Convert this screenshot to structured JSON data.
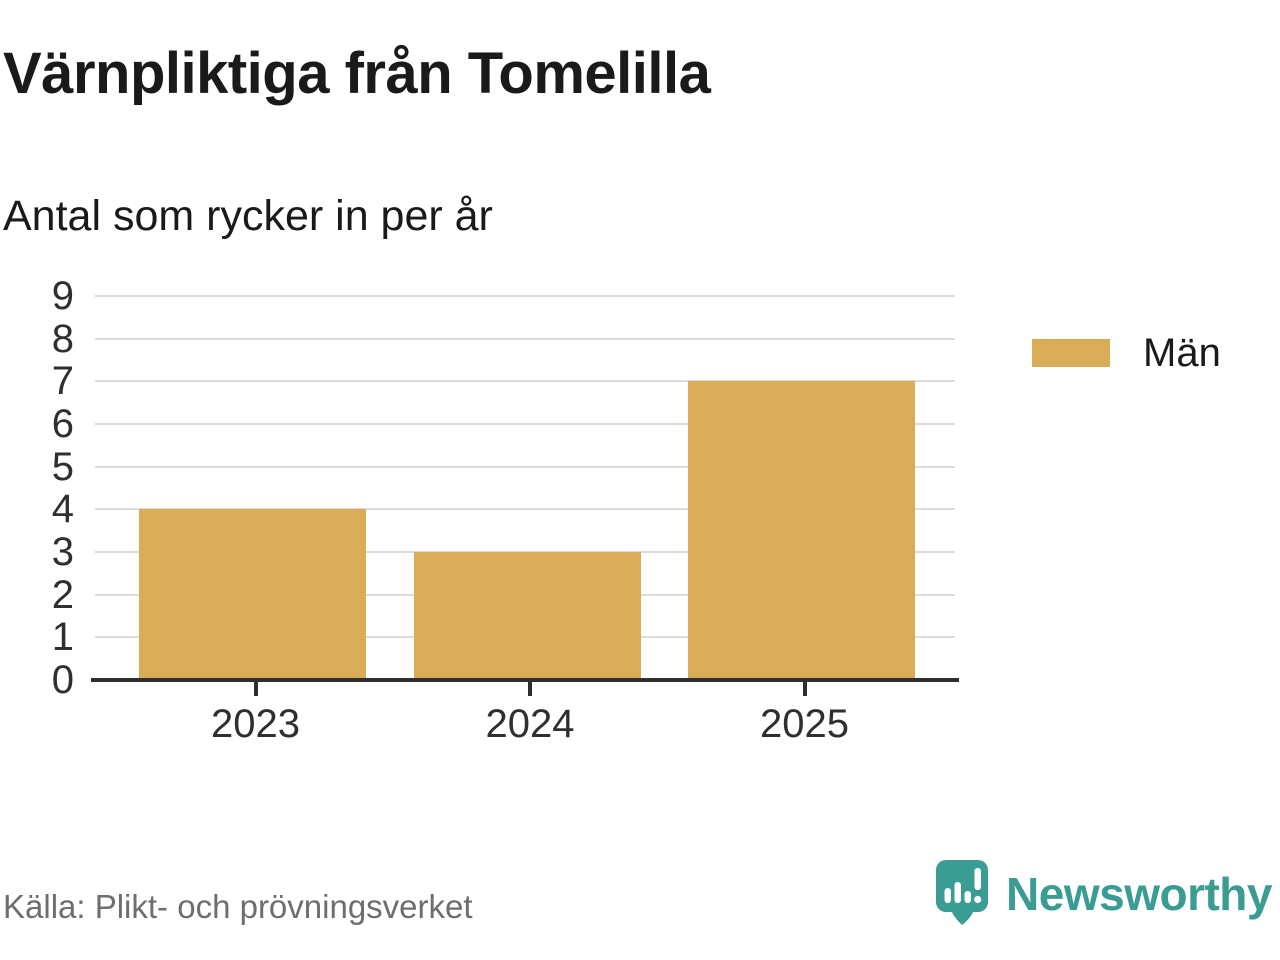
{
  "header": {
    "title": "Värnpliktiga från Tomelilla",
    "subtitle": "Antal som rycker in per år"
  },
  "legend": {
    "items": [
      {
        "label": "Män",
        "color": "#D9AC58"
      }
    ]
  },
  "footer": {
    "source": "Källa: Plikt- och prövningsverket",
    "brand": "Newsworthy"
  },
  "colors": {
    "bar": "#D9AC58",
    "brand_teal": "#3A9D94",
    "grid": "#DCDCDC",
    "axis": "#2E2E2E",
    "tick_label": "#2F2F2F",
    "title_text": "#1A1A1A",
    "muted_text": "#6E6E6E"
  },
  "icons": {
    "logo": "newsworthy-speech-bubble-barchart-icon"
  },
  "chart_data": {
    "type": "bar",
    "categories": [
      "2023",
      "2024",
      "2025"
    ],
    "series": [
      {
        "name": "Män",
        "values": [
          4,
          3,
          7
        ],
        "color": "#D9AC58"
      }
    ],
    "title": "Värnpliktiga från Tomelilla",
    "subtitle": "Antal som rycker in per år",
    "xlabel": "",
    "ylabel": "",
    "ylim": [
      0,
      9
    ],
    "ytick_step": 1,
    "grid": "horizontal",
    "gridlines_behind_bars": true,
    "legend_position": "right",
    "source": "Källa: Plikt- och prövningsverket"
  }
}
